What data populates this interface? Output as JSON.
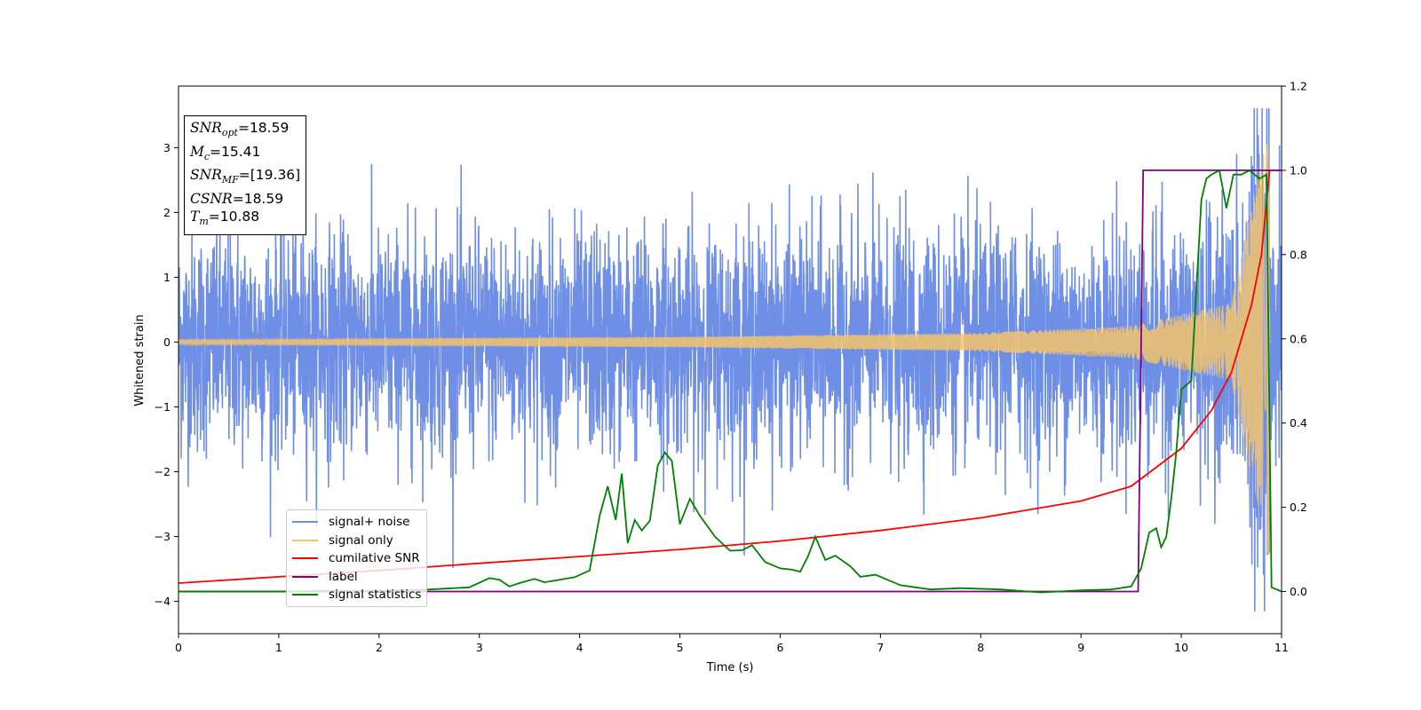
{
  "chart_data": {
    "type": "line",
    "xlabel": "Time (s)",
    "ylabel": "Whitened strain",
    "xlim": [
      0,
      11
    ],
    "ylim": [
      -4.5,
      3.95
    ],
    "y2lim": [
      -0.1,
      1.2
    ],
    "x_ticks": [
      "0",
      "1",
      "2",
      "3",
      "4",
      "5",
      "6",
      "7",
      "8",
      "9",
      "10",
      "11"
    ],
    "y_ticks": [
      "3",
      "2",
      "1",
      "0",
      "−1",
      "−2",
      "−3",
      "−4"
    ],
    "y2_ticks": [
      "1.2",
      "1.0",
      "0.8",
      "0.6",
      "0.4",
      "0.2",
      "0.0"
    ],
    "grid": false,
    "legend_position": "lower-left",
    "colors": {
      "signal_noise": "#6f8fe6",
      "signal_only": "#f5c46b",
      "cumulative_snr": "#ff0000",
      "label": "#800080",
      "signal_statistics": "#008000"
    },
    "series": [
      {
        "name": "signal+ noise",
        "axis": "left",
        "description_values": {
          "mean": 0.0,
          "std": 0.85,
          "envelope_max": 3.6,
          "envelope_min": -4.15
        }
      },
      {
        "name": "signal only",
        "axis": "left",
        "chirp_amplitude": [
          [
            0,
            0.04
          ],
          [
            5,
            0.08
          ],
          [
            8,
            0.14
          ],
          [
            9.5,
            0.25
          ],
          [
            10.5,
            0.6
          ],
          [
            10.88,
            3.4
          ]
        ]
      },
      {
        "name": "cumilative SNR",
        "axis": "right",
        "x": [
          0,
          1,
          2,
          3,
          4,
          5,
          6,
          7,
          8,
          9,
          9.5,
          10,
          10.3,
          10.5,
          10.7,
          10.8,
          10.88,
          11
        ],
        "y": [
          0.02,
          0.035,
          0.05,
          0.067,
          0.083,
          0.1,
          0.12,
          0.145,
          0.175,
          0.215,
          0.25,
          0.34,
          0.43,
          0.52,
          0.68,
          0.8,
          1.0,
          1.0
        ]
      },
      {
        "name": "label",
        "axis": "right",
        "x": [
          0,
          9.57,
          9.62,
          10.95,
          11
        ],
        "y": [
          0,
          0,
          1,
          1,
          1
        ]
      },
      {
        "name": "signal statistics",
        "axis": "right",
        "x": [
          0,
          0.5,
          1,
          1.5,
          2,
          2.5,
          2.9,
          3.1,
          3.2,
          3.3,
          3.4,
          3.55,
          3.65,
          3.8,
          3.95,
          4.1,
          4.2,
          4.28,
          4.36,
          4.42,
          4.48,
          4.55,
          4.62,
          4.7,
          4.78,
          4.85,
          4.92,
          5.0,
          5.1,
          5.2,
          5.35,
          5.5,
          5.62,
          5.72,
          5.85,
          6.0,
          6.12,
          6.2,
          6.28,
          6.35,
          6.45,
          6.55,
          6.7,
          6.8,
          6.95,
          7.2,
          7.5,
          7.8,
          8.2,
          8.6,
          9.0,
          9.3,
          9.5,
          9.6,
          9.68,
          9.75,
          9.8,
          9.85,
          9.9,
          9.95,
          10.0,
          10.1,
          10.2,
          10.25,
          10.3,
          10.38,
          10.45,
          10.52,
          10.6,
          10.68,
          10.78,
          10.85,
          10.9,
          11
        ],
        "y": [
          0.0,
          0.0,
          0.0,
          0.002,
          0.002,
          0.005,
          0.01,
          0.032,
          0.028,
          0.012,
          0.02,
          0.03,
          0.022,
          0.028,
          0.034,
          0.05,
          0.18,
          0.25,
          0.17,
          0.28,
          0.115,
          0.17,
          0.145,
          0.168,
          0.3,
          0.33,
          0.31,
          0.16,
          0.22,
          0.18,
          0.13,
          0.097,
          0.098,
          0.11,
          0.07,
          0.055,
          0.052,
          0.047,
          0.085,
          0.13,
          0.075,
          0.085,
          0.06,
          0.035,
          0.04,
          0.015,
          0.005,
          0.008,
          0.005,
          -0.002,
          0.003,
          0.005,
          0.012,
          0.055,
          0.14,
          0.15,
          0.105,
          0.13,
          0.22,
          0.33,
          0.48,
          0.5,
          0.93,
          0.98,
          0.99,
          1.0,
          0.91,
          0.99,
          0.99,
          1.0,
          0.98,
          0.99,
          0.01,
          0.0
        ]
      }
    ]
  },
  "info_box": {
    "snr_opt_label": "SNR",
    "snr_opt_sub": "opt",
    "snr_opt_value": "=18.59",
    "mc_label": "M",
    "mc_sub": "c",
    "mc_value": "=15.41",
    "snr_mf_label": "SNR",
    "snr_mf_sub": "MF",
    "snr_mf_value": "=[19.36]",
    "csnr_label": "CSNR",
    "csnr_value": "=18.59",
    "tm_label": "T",
    "tm_sub": "m",
    "tm_value": "=10.88"
  },
  "legend": {
    "items": [
      "signal+ noise",
      "signal only",
      "cumilative SNR",
      "label",
      "signal statistics"
    ]
  }
}
